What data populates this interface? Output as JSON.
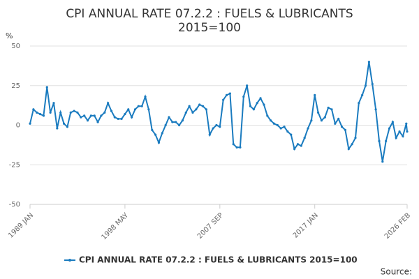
{
  "chart_data": {
    "type": "line",
    "title": [
      "CPI ANNUAL RATE 07.2.2 : FUELS & LUBRICANTS",
      "2015=100"
    ],
    "y_label": "%",
    "source": "Source:",
    "x": [
      "1989 JAN",
      "1989 MAY",
      "1989 SEP",
      "1990 JAN",
      "1990 MAY",
      "1990 SEP",
      "1991 JAN",
      "1991 MAY",
      "1991 SEP",
      "1992 JAN",
      "1992 MAY",
      "1992 SEP",
      "1993 JAN",
      "1993 MAY",
      "1993 SEP",
      "1994 JAN",
      "1994 MAY",
      "1994 SEP",
      "1995 JAN",
      "1995 MAY",
      "1995 SEP",
      "1996 JAN",
      "1996 MAY",
      "1996 SEP",
      "1997 JAN",
      "1997 MAY",
      "1997 SEP",
      "1998 JAN",
      "1998 MAY",
      "1998 SEP",
      "1999 JAN",
      "1999 MAY",
      "1999 SEP",
      "2000 JAN",
      "2000 MAY",
      "2000 SEP",
      "2001 JAN",
      "2001 MAY",
      "2001 SEP",
      "2002 JAN",
      "2002 MAY",
      "2002 SEP",
      "2003 JAN",
      "2003 MAY",
      "2003 SEP",
      "2004 JAN",
      "2004 MAY",
      "2004 SEP",
      "2005 JAN",
      "2005 MAY",
      "2005 SEP",
      "2006 JAN",
      "2006 MAY",
      "2006 SEP",
      "2007 JAN",
      "2007 MAY",
      "2007 SEP",
      "2008 JAN",
      "2008 MAY",
      "2008 SEP",
      "2009 JAN",
      "2009 MAY",
      "2009 SEP",
      "2010 JAN",
      "2010 MAY",
      "2010 SEP",
      "2011 JAN",
      "2011 MAY",
      "2011 SEP",
      "2012 JAN",
      "2012 MAY",
      "2012 SEP",
      "2013 JAN",
      "2013 MAY",
      "2013 SEP",
      "2014 JAN",
      "2014 MAY",
      "2014 SEP",
      "2015 JAN",
      "2015 MAY",
      "2015 SEP",
      "2016 JAN",
      "2016 MAY",
      "2016 SEP",
      "2017 JAN",
      "2017 MAY",
      "2017 SEP",
      "2018 JAN",
      "2018 MAY",
      "2018 SEP",
      "2019 JAN",
      "2019 MAY",
      "2019 SEP",
      "2020 JAN",
      "2020 MAY",
      "2020 SEP",
      "2021 JAN",
      "2021 MAY",
      "2021 SEP",
      "2022 JAN",
      "2022 MAY",
      "2022 SEP",
      "2023 JAN",
      "2023 MAY",
      "2023 SEP",
      "2024 JAN",
      "2024 MAY",
      "2024 SEP",
      "2025 JAN",
      "2025 MAY",
      "2025 SEP",
      "2026 JAN",
      "2026 FEB"
    ],
    "series": [
      {
        "name": "CPI ANNUAL RATE 07.2.2 : FUELS & LUBRICANTS 2015=100",
        "color": "#1a7bbf",
        "values": [
          1,
          10,
          8,
          7,
          6,
          24,
          8,
          14,
          -2,
          8,
          1,
          -1,
          8,
          9,
          8,
          5,
          6,
          3,
          6,
          6,
          2,
          6,
          8,
          14,
          9,
          5,
          4,
          4,
          7,
          10,
          5,
          10,
          12,
          12,
          18,
          10,
          -3,
          -6,
          -11,
          -5,
          0,
          5,
          2,
          2,
          0,
          3,
          8,
          12,
          8,
          10,
          13,
          12,
          10,
          -6,
          -2,
          0,
          -1,
          16,
          19,
          20,
          -12,
          -14,
          -14,
          18,
          25,
          12,
          10,
          14,
          17,
          13,
          6,
          3,
          1,
          0,
          -2,
          -1,
          -4,
          -6,
          -15,
          -12,
          -13,
          -8,
          -2,
          3,
          19,
          8,
          3,
          5,
          11,
          10,
          1,
          4,
          -1,
          -3,
          -15,
          -12,
          -8,
          14,
          19,
          25,
          40,
          26,
          10,
          -10,
          -23,
          -10,
          -2,
          2,
          -8,
          -4,
          -7,
          1,
          -4
        ]
      }
    ],
    "xticks": [
      "1989 JAN",
      "1998 MAY",
      "2007 SEP",
      "2017 JAN",
      "2026 FEB"
    ],
    "ylim": [
      -50,
      50
    ],
    "yticks": [
      50,
      25,
      0,
      -25,
      -50
    ],
    "grid": true,
    "legend": "bottom"
  }
}
